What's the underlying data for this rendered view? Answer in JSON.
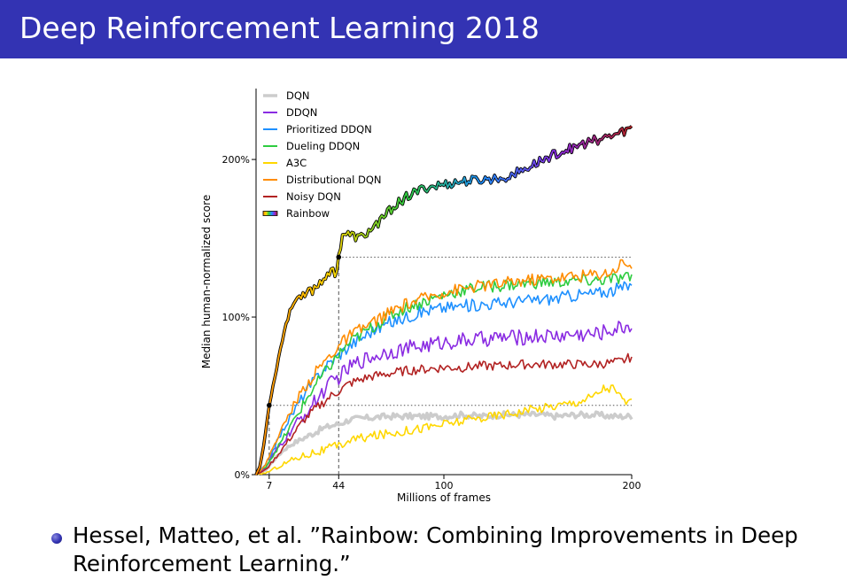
{
  "slide": {
    "title": "Deep Reinforcement Learning 2018",
    "reference_line1": "Hessel, Matteo, et al. ”Rainbow: Combining Improvements in Deep",
    "reference_line2": "Reinforcement Learning.”"
  },
  "colors": {
    "title_bar": "#3333b3",
    "bullet": "#3333b3"
  },
  "chart_data": {
    "type": "line",
    "title": "",
    "xlabel": "Millions of frames",
    "ylabel": "Median human-normalized score",
    "xlim": [
      0,
      200
    ],
    "ylim": [
      0,
      245
    ],
    "xticks": [
      7,
      44,
      100,
      200
    ],
    "xtick_labels": [
      "7",
      "44",
      "100",
      "200"
    ],
    "yticks": [
      0,
      100,
      200
    ],
    "ytick_labels": [
      "0%",
      "100%",
      "200%"
    ],
    "legend_position": "top-left",
    "grid": false,
    "reference_lines": [
      {
        "orientation": "horizontal",
        "y": 44,
        "x_range": [
          7,
          200
        ],
        "style": "dotted"
      },
      {
        "orientation": "horizontal",
        "y": 138,
        "x_range": [
          44,
          200
        ],
        "style": "dotted"
      },
      {
        "orientation": "vertical",
        "x": 7,
        "y_range": [
          0,
          44
        ],
        "style": "dashed"
      },
      {
        "orientation": "vertical",
        "x": 44,
        "y_range": [
          0,
          138
        ],
        "style": "dashed"
      }
    ],
    "markers": [
      {
        "x": 7,
        "y": 44
      },
      {
        "x": 44,
        "y": 138
      }
    ],
    "series": [
      {
        "name": "DQN",
        "color": "#cccccc",
        "points": [
          [
            0,
            0
          ],
          [
            5,
            3
          ],
          [
            10,
            10
          ],
          [
            15,
            16
          ],
          [
            20,
            20
          ],
          [
            25,
            23
          ],
          [
            30,
            26
          ],
          [
            35,
            29
          ],
          [
            40,
            31
          ],
          [
            44,
            32
          ],
          [
            50,
            35
          ],
          [
            60,
            36
          ],
          [
            70,
            37
          ],
          [
            80,
            37
          ],
          [
            90,
            37
          ],
          [
            100,
            37
          ],
          [
            110,
            38
          ],
          [
            120,
            37
          ],
          [
            130,
            38
          ],
          [
            140,
            38
          ],
          [
            150,
            38
          ],
          [
            160,
            37
          ],
          [
            170,
            38
          ],
          [
            180,
            38
          ],
          [
            190,
            37
          ],
          [
            200,
            37
          ]
        ]
      },
      {
        "name": "DDQN",
        "color": "#8a2be2",
        "points": [
          [
            0,
            0
          ],
          [
            5,
            4
          ],
          [
            10,
            14
          ],
          [
            15,
            22
          ],
          [
            20,
            30
          ],
          [
            25,
            37
          ],
          [
            30,
            44
          ],
          [
            35,
            52
          ],
          [
            40,
            58
          ],
          [
            44,
            62
          ],
          [
            50,
            68
          ],
          [
            55,
            72
          ],
          [
            60,
            74
          ],
          [
            70,
            78
          ],
          [
            80,
            80
          ],
          [
            90,
            82
          ],
          [
            100,
            84
          ],
          [
            110,
            85
          ],
          [
            120,
            86
          ],
          [
            130,
            87
          ],
          [
            140,
            87
          ],
          [
            150,
            88
          ],
          [
            160,
            88
          ],
          [
            170,
            89
          ],
          [
            180,
            89
          ],
          [
            190,
            92
          ],
          [
            200,
            95
          ]
        ]
      },
      {
        "name": "Prioritized DDQN",
        "color": "#1e90ff",
        "points": [
          [
            0,
            0
          ],
          [
            5,
            6
          ],
          [
            10,
            18
          ],
          [
            15,
            30
          ],
          [
            20,
            40
          ],
          [
            25,
            50
          ],
          [
            30,
            58
          ],
          [
            35,
            66
          ],
          [
            40,
            72
          ],
          [
            44,
            76
          ],
          [
            50,
            82
          ],
          [
            60,
            90
          ],
          [
            70,
            96
          ],
          [
            80,
            100
          ],
          [
            90,
            104
          ],
          [
            100,
            106
          ],
          [
            110,
            107
          ],
          [
            120,
            108
          ],
          [
            130,
            109
          ],
          [
            140,
            110
          ],
          [
            150,
            111
          ],
          [
            160,
            112
          ],
          [
            170,
            114
          ],
          [
            180,
            115
          ],
          [
            190,
            117
          ],
          [
            200,
            120
          ]
        ]
      },
      {
        "name": "Dueling DDQN",
        "color": "#2ecc40",
        "points": [
          [
            0,
            0
          ],
          [
            5,
            5
          ],
          [
            10,
            14
          ],
          [
            15,
            24
          ],
          [
            20,
            34
          ],
          [
            25,
            44
          ],
          [
            30,
            54
          ],
          [
            35,
            62
          ],
          [
            40,
            70
          ],
          [
            44,
            76
          ],
          [
            50,
            84
          ],
          [
            60,
            92
          ],
          [
            70,
            100
          ],
          [
            80,
            106
          ],
          [
            90,
            110
          ],
          [
            100,
            114
          ],
          [
            110,
            117
          ],
          [
            120,
            119
          ],
          [
            130,
            120
          ],
          [
            140,
            121
          ],
          [
            150,
            122
          ],
          [
            160,
            122
          ],
          [
            170,
            123
          ],
          [
            180,
            123
          ],
          [
            190,
            124
          ],
          [
            200,
            125
          ]
        ]
      },
      {
        "name": "A3C",
        "color": "#ffd700",
        "points": [
          [
            0,
            0
          ],
          [
            5,
            1
          ],
          [
            10,
            4
          ],
          [
            15,
            7
          ],
          [
            20,
            10
          ],
          [
            25,
            12
          ],
          [
            30,
            14
          ],
          [
            35,
            15
          ],
          [
            40,
            17
          ],
          [
            44,
            18
          ],
          [
            50,
            22
          ],
          [
            60,
            24
          ],
          [
            70,
            26
          ],
          [
            80,
            28
          ],
          [
            90,
            30
          ],
          [
            100,
            32
          ],
          [
            110,
            34
          ],
          [
            120,
            36
          ],
          [
            130,
            38
          ],
          [
            140,
            40
          ],
          [
            150,
            42
          ],
          [
            160,
            44
          ],
          [
            170,
            46
          ],
          [
            180,
            50
          ],
          [
            185,
            55
          ],
          [
            190,
            55
          ],
          [
            195,
            48
          ],
          [
            200,
            45
          ]
        ]
      },
      {
        "name": "Distributional DQN",
        "color": "#ff8c00",
        "points": [
          [
            0,
            0
          ],
          [
            5,
            6
          ],
          [
            10,
            20
          ],
          [
            15,
            32
          ],
          [
            20,
            44
          ],
          [
            25,
            54
          ],
          [
            30,
            62
          ],
          [
            35,
            70
          ],
          [
            40,
            76
          ],
          [
            44,
            82
          ],
          [
            50,
            88
          ],
          [
            60,
            95
          ],
          [
            70,
            102
          ],
          [
            80,
            108
          ],
          [
            90,
            112
          ],
          [
            100,
            116
          ],
          [
            110,
            118
          ],
          [
            120,
            120
          ],
          [
            130,
            121
          ],
          [
            140,
            123
          ],
          [
            150,
            124
          ],
          [
            160,
            125
          ],
          [
            170,
            126
          ],
          [
            180,
            127
          ],
          [
            190,
            129
          ],
          [
            195,
            135
          ],
          [
            200,
            133
          ]
        ]
      },
      {
        "name": "Noisy DQN",
        "color": "#b22222",
        "points": [
          [
            0,
            0
          ],
          [
            5,
            3
          ],
          [
            10,
            10
          ],
          [
            15,
            18
          ],
          [
            20,
            26
          ],
          [
            25,
            34
          ],
          [
            30,
            40
          ],
          [
            35,
            45
          ],
          [
            40,
            50
          ],
          [
            44,
            53
          ],
          [
            50,
            58
          ],
          [
            60,
            62
          ],
          [
            70,
            64
          ],
          [
            80,
            66
          ],
          [
            90,
            67
          ],
          [
            100,
            68
          ],
          [
            110,
            68
          ],
          [
            120,
            69
          ],
          [
            130,
            69
          ],
          [
            140,
            70
          ],
          [
            150,
            70
          ],
          [
            160,
            70
          ],
          [
            170,
            70
          ],
          [
            180,
            70
          ],
          [
            190,
            71
          ],
          [
            195,
            72
          ],
          [
            200,
            75
          ]
        ]
      },
      {
        "name": "Rainbow",
        "color": "rainbow",
        "points": [
          [
            0,
            0
          ],
          [
            2,
            5
          ],
          [
            4,
            18
          ],
          [
            7,
            44
          ],
          [
            10,
            62
          ],
          [
            13,
            80
          ],
          [
            16,
            96
          ],
          [
            20,
            110
          ],
          [
            25,
            115
          ],
          [
            30,
            117
          ],
          [
            35,
            123
          ],
          [
            40,
            131
          ],
          [
            42,
            126
          ],
          [
            44,
            138
          ],
          [
            46,
            153
          ],
          [
            50,
            152
          ],
          [
            55,
            150
          ],
          [
            60,
            154
          ],
          [
            65,
            160
          ],
          [
            70,
            166
          ],
          [
            75,
            172
          ],
          [
            80,
            176
          ],
          [
            90,
            182
          ],
          [
            100,
            184
          ],
          [
            110,
            186
          ],
          [
            120,
            187
          ],
          [
            130,
            188
          ],
          [
            140,
            192
          ],
          [
            150,
            198
          ],
          [
            160,
            204
          ],
          [
            170,
            208
          ],
          [
            180,
            212
          ],
          [
            190,
            215
          ],
          [
            200,
            220
          ]
        ]
      }
    ]
  }
}
